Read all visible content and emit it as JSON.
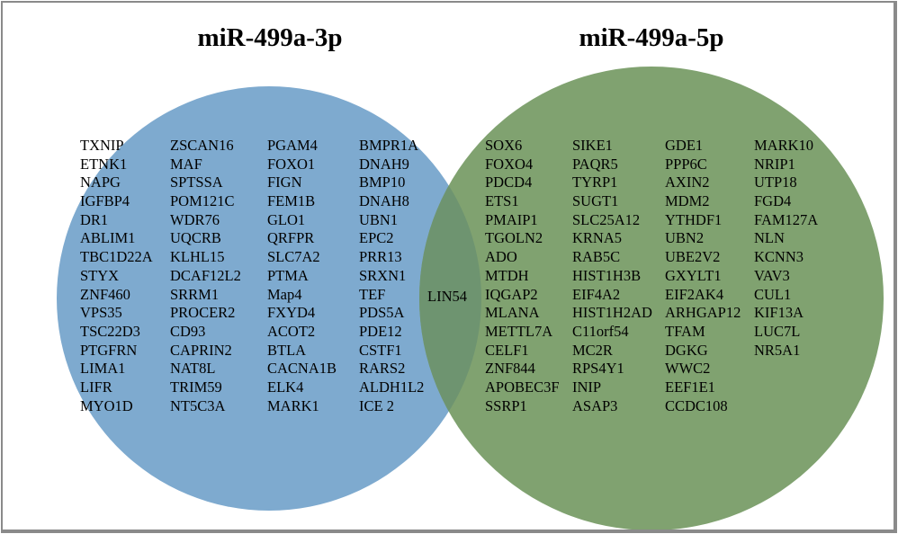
{
  "sets": [
    {
      "label": "miR-499a-3p",
      "color": "#7eaacf",
      "columns": [
        [
          "TXNIP",
          "ETNK1",
          "NAPG",
          "IGFBP4",
          "DR1",
          "ABLIM1",
          "TBC1D22A",
          "STYX",
          "ZNF460",
          "VPS35",
          "TSC22D3",
          "PTGFRN",
          "LIMA1",
          "LIFR",
          "MYO1D"
        ],
        [
          "ZSCAN16",
          "MAF",
          "SPTSSA",
          "POM121C",
          "WDR76",
          "UQCRB",
          "KLHL15",
          "DCAF12L2",
          "SRRM1",
          "PROCER2",
          "CD93",
          "CAPRIN2",
          "NAT8L",
          "TRIM59",
          "NT5C3A"
        ],
        [
          "PGAM4",
          "FOXO1",
          "FIGN",
          "FEM1B",
          "GLO1",
          "QRFPR",
          "SLC7A2",
          "PTMA",
          "Map4",
          "FXYD4",
          "ACOT2",
          "BTLA",
          "CACNA1B",
          "ELK4",
          "MARK1"
        ],
        [
          "BMPR1A",
          "DNAH9",
          "BMP10",
          "DNAH8",
          "UBN1",
          "EPC2",
          "PRR13",
          "SRXN1",
          "TEF",
          "PDS5A",
          "PDE12",
          "CSTF1",
          "RARS2",
          "ALDH1L2",
          "ICE 2"
        ]
      ]
    },
    {
      "label": "miR-499a-5p",
      "color": "#80a270",
      "columns": [
        [
          "SOX6",
          "FOXO4",
          "PDCD4",
          "ETS1",
          "PMAIP1",
          "TGOLN2",
          "ADO",
          "MTDH",
          "IQGAP2",
          "MLANA",
          "METTL7A",
          "CELF1",
          "ZNF844",
          "APOBEC3F",
          "SSRP1"
        ],
        [
          "SIKE1",
          "PAQR5",
          "TYRP1",
          "SUGT1",
          "SLC25A12",
          "KRNA5",
          "RAB5C",
          "HIST1H3B",
          "EIF4A2",
          "HIST1H2AD",
          "C11orf54",
          "MC2R",
          "RPS4Y1",
          "INIP",
          "ASAP3"
        ],
        [
          "GDE1",
          "PPP6C",
          "AXIN2",
          "MDM2",
          "YTHDF1",
          "UBN2",
          "UBE2V2",
          "GXYLT1",
          "EIF2AK4",
          "ARHGAP12",
          "TFAM",
          "DGKG",
          "WWC2",
          "EEF1E1",
          "CCDC108"
        ],
        [
          "MARK10",
          "NRIP1",
          "UTP18",
          "FGD4",
          "FAM127A",
          "NLN",
          "KCNN3",
          "VAV3",
          "CUL1",
          "KIF13A",
          "LUC7L",
          "NR5A1"
        ]
      ]
    }
  ],
  "intersection": {
    "items": [
      "LIN54"
    ],
    "color": "#6e9470"
  }
}
